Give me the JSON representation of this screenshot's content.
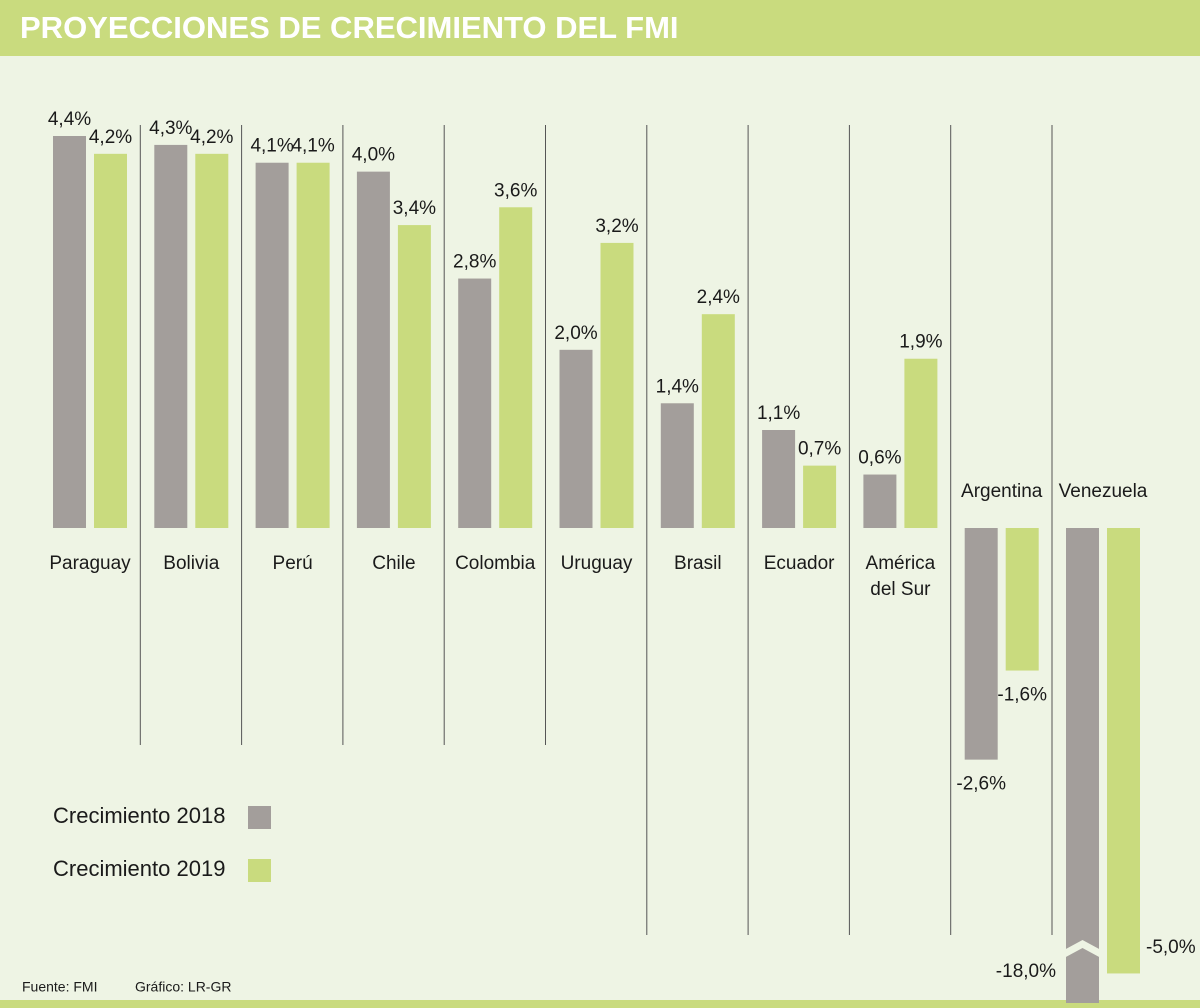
{
  "chart_data": {
    "type": "bar",
    "title": "PROYECCIONES DE CRECIMIENTO DEL FMI",
    "categories": [
      "Paraguay",
      "Bolivia",
      "Perú",
      "Chile",
      "Colombia",
      "Uruguay",
      "Brasil",
      "Ecuador",
      "América del Sur",
      "Argentina",
      "Venezuela"
    ],
    "series": [
      {
        "name": "Crecimiento 2018",
        "color": "#a39e9b",
        "values": [
          4.4,
          4.3,
          4.1,
          4.0,
          2.8,
          2.0,
          1.4,
          1.1,
          0.6,
          -2.6,
          -18.0
        ],
        "value_labels": [
          "4,4%",
          "4,3%",
          "4,1%",
          "4,0%",
          "2,8%",
          "2,0%",
          "1,4%",
          "1,1%",
          "0,6%",
          "-2,6%",
          "-18,0%"
        ]
      },
      {
        "name": "Crecimiento 2019",
        "color": "#c9db7e",
        "values": [
          4.2,
          4.2,
          4.1,
          3.4,
          3.6,
          3.2,
          2.4,
          0.7,
          1.9,
          -1.6,
          -5.0
        ],
        "value_labels": [
          "4,2%",
          "4,2%",
          "4,1%",
          "3,4%",
          "3,6%",
          "3,2%",
          "2,4%",
          "0,7%",
          "1,9%",
          "-1,6%",
          "-5,0%"
        ]
      }
    ],
    "ylim": [
      -5.4,
      4.4
    ],
    "source": "Fuente: FMI",
    "credit": "Gráfico: LR-GR"
  }
}
